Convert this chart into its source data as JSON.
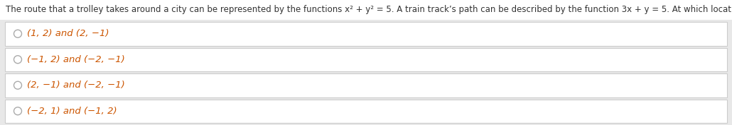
{
  "background_color": "#ffffff",
  "page_bg": "#f0f0f0",
  "question_text": "The route that a trolley takes around a city can be represented by the functions x² + y² = 5. A train track’s path can be described by the function 3x + y = 5. At which location(s) will the trolley and train meet?",
  "options": [
    "(1, 2) and (2, −1)",
    "(−1, 2) and (−2, −1)",
    "(2, −1) and (−2, −1)",
    "(−2, 1) and (−1, 2)"
  ],
  "question_color": "#333333",
  "option_color": "#cc5500",
  "circle_color": "#aaaaaa",
  "box_border_color": "#cccccc",
  "box_bg_color": "#ffffff",
  "outer_bg_color": "#e8e8e8",
  "question_fontsize": 8.5,
  "option_fontsize": 9.5,
  "fig_width": 10.3,
  "fig_height": 1.77,
  "dpi": 100
}
